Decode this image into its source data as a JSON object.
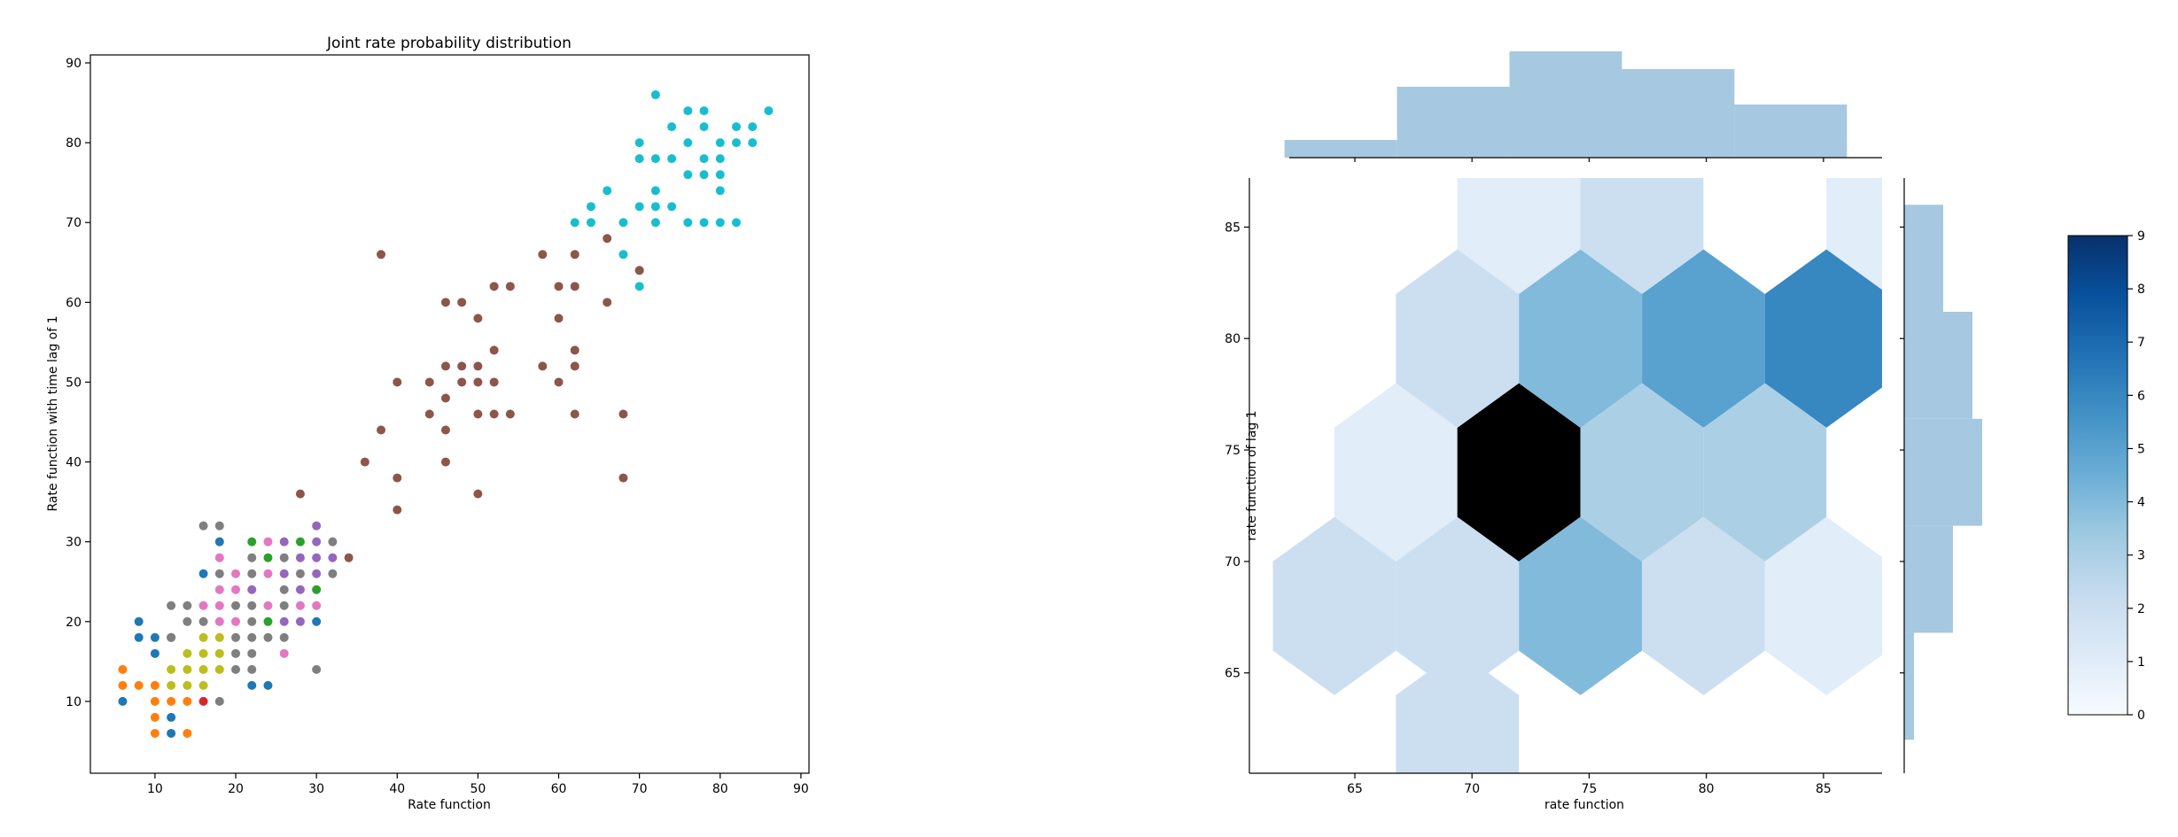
{
  "chart_data": [
    {
      "type": "scatter",
      "title": "Joint rate probability distribution",
      "xlabel": "Rate function",
      "ylabel": "Rate function with time lag of 1",
      "xlim": [
        2,
        91
      ],
      "ylim": [
        1,
        91
      ],
      "xticks": [
        10,
        20,
        30,
        40,
        50,
        60,
        70,
        80,
        90
      ],
      "yticks": [
        10,
        20,
        30,
        40,
        50,
        60,
        70,
        80,
        90
      ],
      "grid": false,
      "series": [
        {
          "color": "#17becf",
          "points": [
            [
              72,
              86
            ],
            [
              76,
              84
            ],
            [
              78,
              84
            ],
            [
              86,
              84
            ],
            [
              74,
              82
            ],
            [
              78,
              82
            ],
            [
              82,
              82
            ],
            [
              84,
              82
            ],
            [
              70,
              80
            ],
            [
              76,
              80
            ],
            [
              80,
              80
            ],
            [
              82,
              80
            ],
            [
              84,
              80
            ],
            [
              70,
              78
            ],
            [
              72,
              78
            ],
            [
              74,
              78
            ],
            [
              78,
              78
            ],
            [
              80,
              78
            ],
            [
              76,
              76
            ],
            [
              78,
              76
            ],
            [
              80,
              76
            ],
            [
              66,
              74
            ],
            [
              72,
              74
            ],
            [
              80,
              74
            ],
            [
              64,
              72
            ],
            [
              70,
              72
            ],
            [
              72,
              72
            ],
            [
              74,
              72
            ],
            [
              62,
              70
            ],
            [
              64,
              70
            ],
            [
              68,
              70
            ],
            [
              72,
              70
            ],
            [
              76,
              70
            ],
            [
              78,
              70
            ],
            [
              80,
              70
            ],
            [
              82,
              70
            ],
            [
              68,
              66
            ],
            [
              70,
              64
            ],
            [
              70,
              62
            ]
          ]
        },
        {
          "color": "#8c564b",
          "points": [
            [
              66,
              68
            ],
            [
              38,
              66
            ],
            [
              58,
              66
            ],
            [
              62,
              66
            ],
            [
              70,
              64
            ],
            [
              52,
              62
            ],
            [
              54,
              62
            ],
            [
              60,
              62
            ],
            [
              62,
              62
            ],
            [
              46,
              60
            ],
            [
              48,
              60
            ],
            [
              66,
              60
            ],
            [
              50,
              58
            ],
            [
              60,
              58
            ],
            [
              52,
              54
            ],
            [
              62,
              54
            ],
            [
              46,
              52
            ],
            [
              48,
              52
            ],
            [
              50,
              52
            ],
            [
              58,
              52
            ],
            [
              62,
              52
            ],
            [
              40,
              50
            ],
            [
              44,
              50
            ],
            [
              48,
              50
            ],
            [
              50,
              50
            ],
            [
              52,
              50
            ],
            [
              60,
              50
            ],
            [
              46,
              48
            ],
            [
              44,
              46
            ],
            [
              50,
              46
            ],
            [
              52,
              46
            ],
            [
              54,
              46
            ],
            [
              62,
              46
            ],
            [
              68,
              46
            ],
            [
              38,
              44
            ],
            [
              46,
              44
            ],
            [
              36,
              40
            ],
            [
              46,
              40
            ],
            [
              40,
              38
            ],
            [
              68,
              38
            ],
            [
              28,
              36
            ],
            [
              50,
              36
            ],
            [
              40,
              34
            ],
            [
              34,
              28
            ]
          ]
        },
        {
          "color": "#1f77b4",
          "points": [
            [
              18,
              30
            ],
            [
              16,
              26
            ],
            [
              30,
              20
            ],
            [
              8,
              20
            ],
            [
              8,
              18
            ],
            [
              10,
              18
            ],
            [
              12,
              18
            ],
            [
              10,
              16
            ],
            [
              22,
              12
            ],
            [
              24,
              12
            ],
            [
              6,
              10
            ],
            [
              12,
              8
            ],
            [
              12,
              6
            ]
          ]
        },
        {
          "color": "#ff7f0e",
          "points": [
            [
              6,
              14
            ],
            [
              6,
              12
            ],
            [
              8,
              12
            ],
            [
              10,
              12
            ],
            [
              10,
              10
            ],
            [
              12,
              10
            ],
            [
              14,
              10
            ],
            [
              10,
              8
            ],
            [
              10,
              6
            ],
            [
              14,
              6
            ]
          ]
        },
        {
          "color": "#2ca02c",
          "points": [
            [
              22,
              30
            ],
            [
              28,
              30
            ],
            [
              24,
              28
            ],
            [
              30,
              24
            ],
            [
              24,
              20
            ]
          ]
        },
        {
          "color": "#d62728",
          "points": [
            [
              16,
              10
            ]
          ]
        },
        {
          "color": "#9467bd",
          "points": [
            [
              30,
              32
            ],
            [
              26,
              30
            ],
            [
              30,
              30
            ],
            [
              28,
              28
            ],
            [
              30,
              28
            ],
            [
              32,
              28
            ],
            [
              26,
              26
            ],
            [
              30,
              26
            ],
            [
              22,
              24
            ],
            [
              28,
              24
            ],
            [
              26,
              20
            ],
            [
              28,
              20
            ]
          ]
        },
        {
          "color": "#e377c2",
          "points": [
            [
              24,
              30
            ],
            [
              18,
              28
            ],
            [
              20,
              26
            ],
            [
              24,
              26
            ],
            [
              18,
              24
            ],
            [
              20,
              24
            ],
            [
              16,
              22
            ],
            [
              18,
              22
            ],
            [
              24,
              22
            ],
            [
              28,
              22
            ],
            [
              30,
              22
            ],
            [
              18,
              20
            ],
            [
              20,
              20
            ],
            [
              26,
              16
            ]
          ]
        },
        {
          "color": "#7f7f7f",
          "points": [
            [
              16,
              32
            ],
            [
              18,
              32
            ],
            [
              32,
              30
            ],
            [
              22,
              28
            ],
            [
              26,
              28
            ],
            [
              18,
              26
            ],
            [
              22,
              26
            ],
            [
              28,
              26
            ],
            [
              32,
              26
            ],
            [
              26,
              24
            ],
            [
              12,
              22
            ],
            [
              14,
              22
            ],
            [
              20,
              22
            ],
            [
              22,
              22
            ],
            [
              26,
              22
            ],
            [
              14,
              20
            ],
            [
              16,
              20
            ],
            [
              22,
              20
            ],
            [
              12,
              18
            ],
            [
              20,
              18
            ],
            [
              22,
              18
            ],
            [
              24,
              18
            ],
            [
              26,
              18
            ],
            [
              20,
              16
            ],
            [
              22,
              16
            ],
            [
              20,
              14
            ],
            [
              22,
              14
            ],
            [
              30,
              14
            ],
            [
              18,
              10
            ]
          ]
        },
        {
          "color": "#bcbd22",
          "points": [
            [
              16,
              18
            ],
            [
              18,
              18
            ],
            [
              14,
              16
            ],
            [
              16,
              16
            ],
            [
              18,
              16
            ],
            [
              12,
              14
            ],
            [
              14,
              14
            ],
            [
              16,
              14
            ],
            [
              18,
              14
            ],
            [
              12,
              12
            ],
            [
              14,
              12
            ],
            [
              16,
              12
            ]
          ]
        }
      ]
    },
    {
      "type": "heatmap",
      "subtype": "hexbin-jointplot",
      "xlabel": "rate function",
      "ylabel": "rate function of lag 1",
      "xlim": [
        60.5,
        87.5
      ],
      "ylim": [
        60.5,
        87.2
      ],
      "xticks": [
        65,
        70,
        75,
        80,
        85
      ],
      "yticks": [
        65,
        70,
        75,
        80,
        85
      ],
      "colormap": "Blues",
      "color_range": [
        0,
        9
      ],
      "colorbar_ticks": [
        0,
        1,
        2,
        3,
        4,
        5,
        6,
        7,
        8,
        9
      ],
      "hexbins": [
        {
          "x": 69.38,
          "y": 62.0,
          "count": 2
        },
        {
          "x": 64.13,
          "y": 68.0,
          "count": 2
        },
        {
          "x": 69.38,
          "y": 68.0,
          "count": 2
        },
        {
          "x": 74.63,
          "y": 68.0,
          "count": 4
        },
        {
          "x": 79.88,
          "y": 68.0,
          "count": 2
        },
        {
          "x": 85.13,
          "y": 68.0,
          "count": 1
        },
        {
          "x": 66.75,
          "y": 74.0,
          "count": 1
        },
        {
          "x": 72.0,
          "y": 74.0,
          "count": 9
        },
        {
          "x": 77.25,
          "y": 74.0,
          "count": 3
        },
        {
          "x": 82.5,
          "y": 74.0,
          "count": 3
        },
        {
          "x": 69.38,
          "y": 80.0,
          "count": 2
        },
        {
          "x": 74.63,
          "y": 80.0,
          "count": 4
        },
        {
          "x": 79.88,
          "y": 80.0,
          "count": 5
        },
        {
          "x": 85.13,
          "y": 80.0,
          "count": 6
        },
        {
          "x": 72.0,
          "y": 86.0,
          "count": 1
        },
        {
          "x": 77.25,
          "y": 86.0,
          "count": 2
        },
        {
          "x": 87.75,
          "y": 86.0,
          "count": 1
        }
      ],
      "marginal_x": {
        "edges": [
          62,
          66.8,
          71.6,
          76.4,
          81.2,
          86
        ],
        "counts": [
          1,
          4,
          6,
          5,
          3
        ],
        "color": "#a6c8e0"
      },
      "marginal_y": {
        "edges": [
          62,
          66.8,
          71.6,
          76.4,
          81.2,
          86
        ],
        "counts": [
          1,
          5,
          8,
          7,
          4
        ],
        "color": "#a6c8e0"
      }
    }
  ]
}
